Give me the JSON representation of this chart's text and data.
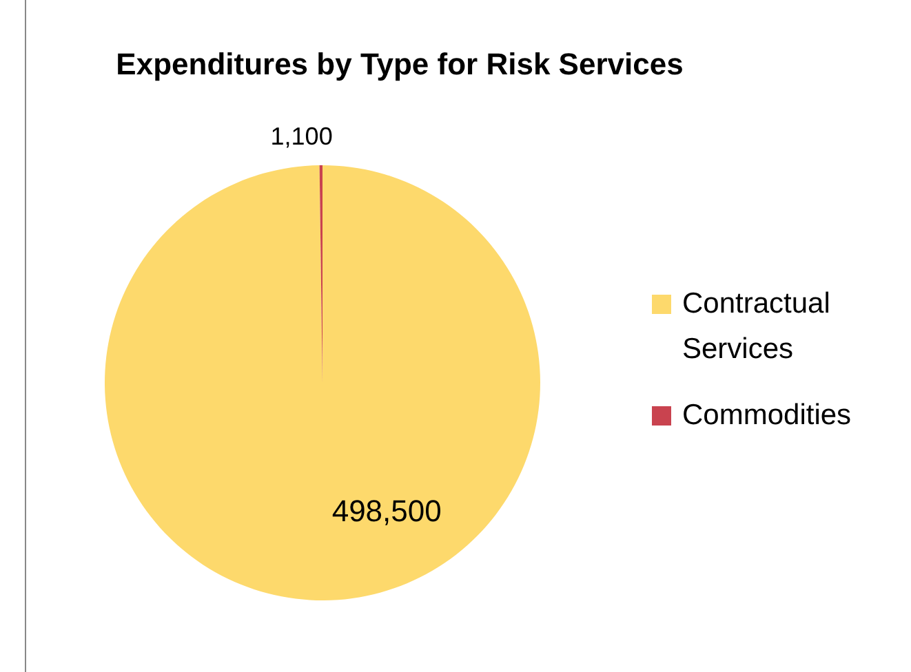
{
  "chart_data": {
    "type": "pie",
    "title": "Expenditures by Type for Risk Services",
    "categories": [
      "Contractual Services",
      "Commodities"
    ],
    "values": [
      498500,
      1100
    ],
    "colors": [
      "#fdd96c",
      "#c9434f"
    ],
    "value_labels": [
      "498,500",
      "1,100"
    ],
    "legend": "right"
  }
}
